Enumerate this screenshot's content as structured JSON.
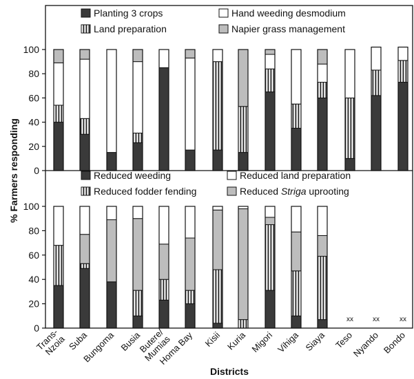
{
  "figure": {
    "ylabel": "% Farmers responding",
    "xlabel": "Districts",
    "districts": [
      "Trans-Nzoia",
      "Suba",
      "Bungoma",
      "Busia",
      "Butere/Mumias",
      "Homa Bay",
      "Kisii",
      "Kuria",
      "Migori",
      "Vihiga",
      "Siaya",
      "Teso",
      "Nyando",
      "Bondo"
    ],
    "district_display": [
      [
        "Trans-",
        "Nzoia"
      ],
      [
        "Suba"
      ],
      [
        "Bungoma"
      ],
      [
        "Busia"
      ],
      [
        "Butere/",
        "Mumias"
      ],
      [
        "Homa Bay"
      ],
      [
        "Kisii"
      ],
      [
        "Kuria"
      ],
      [
        "Migori"
      ],
      [
        "Vihiga"
      ],
      [
        "Siaya"
      ],
      [
        "Teso"
      ],
      [
        "Nyando"
      ],
      [
        "Bondo"
      ]
    ],
    "missing_marker": "xx"
  },
  "colors": {
    "dark": "#3a3a3a",
    "white": "#ffffff",
    "gray": "#bdbdbd",
    "stripe": "#222222",
    "frame": "#111111"
  },
  "chart_data": [
    {
      "type": "bar",
      "stacked": true,
      "panel": "top",
      "categories": [
        "Trans-Nzoia",
        "Suba",
        "Bungoma",
        "Busia",
        "Butere/Mumias",
        "Homa Bay",
        "Kisii",
        "Kuria",
        "Migori",
        "Vihiga",
        "Siaya",
        "Teso",
        "Nyando",
        "Bondo"
      ],
      "ylim": [
        0,
        100
      ],
      "yticks": [
        0,
        20,
        40,
        60,
        80,
        100
      ],
      "legend": [
        {
          "label": "Planting 3 crops",
          "pattern": "dark"
        },
        {
          "label": "Hand weeding desmodium",
          "pattern": "white"
        },
        {
          "label": "Land preparation",
          "pattern": "stripe"
        },
        {
          "label": "Napier grass management",
          "pattern": "gray"
        }
      ],
      "series": [
        {
          "name": "Planting 3 crops",
          "pattern": "dark",
          "values": [
            40,
            30,
            15,
            23,
            85,
            17,
            17,
            15,
            65,
            35,
            60,
            10,
            62,
            73
          ]
        },
        {
          "name": "Land preparation",
          "pattern": "stripe",
          "values": [
            14,
            13,
            0,
            8,
            0,
            0,
            73,
            38,
            19,
            20,
            13,
            50,
            21,
            18
          ]
        },
        {
          "name": "Hand weeding desmodium",
          "pattern": "white",
          "values": [
            35,
            49,
            85,
            59,
            15,
            76,
            10,
            0,
            12,
            45,
            15,
            40,
            19,
            11
          ]
        },
        {
          "name": "Napier grass management",
          "pattern": "gray",
          "values": [
            11,
            8,
            0,
            10,
            0,
            7,
            0,
            47,
            4,
            0,
            12,
            0,
            0,
            0
          ]
        }
      ]
    },
    {
      "type": "bar",
      "stacked": true,
      "panel": "bottom",
      "categories": [
        "Trans-Nzoia",
        "Suba",
        "Bungoma",
        "Busia",
        "Butere/Mumias",
        "Homa Bay",
        "Kisii",
        "Kuria",
        "Migori",
        "Vihiga",
        "Siaya",
        "Teso",
        "Nyando",
        "Bondo"
      ],
      "ylim": [
        0,
        100
      ],
      "yticks": [
        0,
        20,
        40,
        60,
        80,
        100
      ],
      "legend": [
        {
          "label": "Reduced weeding",
          "pattern": "dark"
        },
        {
          "label": "Reduced land preparation",
          "pattern": "white"
        },
        {
          "label": "Reduced fodder fending",
          "pattern": "stripe"
        },
        {
          "label_prefix": "Reduced ",
          "label_italic": "Striga",
          "label_suffix": " uprooting",
          "pattern": "gray"
        }
      ],
      "series": [
        {
          "name": "Reduced weeding",
          "pattern": "dark",
          "values": [
            35,
            49,
            38,
            10,
            23,
            20,
            4,
            0,
            31,
            10,
            7,
            null,
            null,
            null
          ]
        },
        {
          "name": "Reduced fodder fending",
          "pattern": "stripe",
          "values": [
            33,
            4,
            0,
            21,
            17,
            11,
            44,
            7,
            54,
            37,
            52,
            null,
            null,
            null
          ]
        },
        {
          "name": "Reduced Striga uprooting",
          "pattern": "gray",
          "values": [
            0,
            24,
            51,
            59,
            29,
            43,
            49,
            91,
            6,
            32,
            17,
            null,
            null,
            null
          ]
        },
        {
          "name": "Reduced land preparation",
          "pattern": "white",
          "values": [
            32,
            23,
            11,
            10,
            31,
            26,
            3,
            2,
            9,
            21,
            24,
            null,
            null,
            null
          ]
        }
      ]
    }
  ]
}
